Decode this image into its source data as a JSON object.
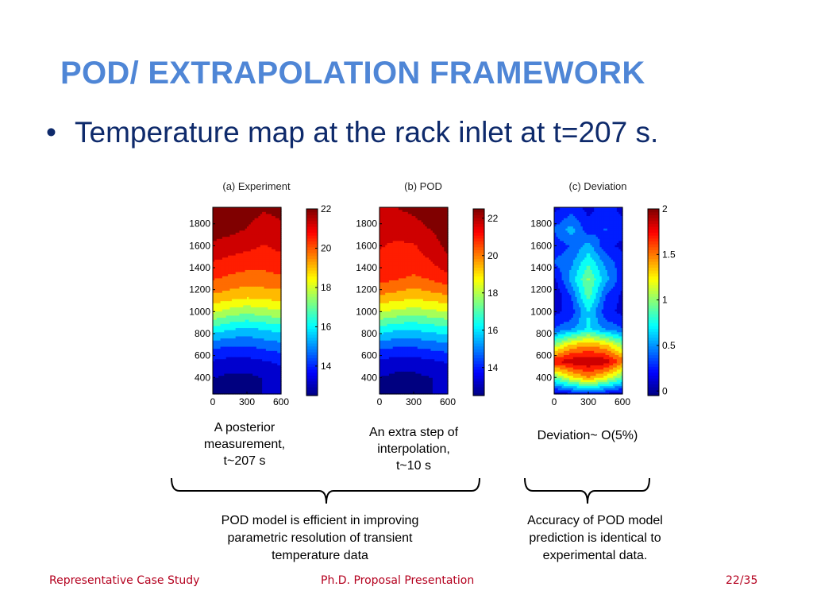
{
  "slide": {
    "title": "POD/ EXTRAPOLATION FRAMEWORK",
    "bullet": "Temperature map at the rack inlet at t=207 s."
  },
  "captions": {
    "experiment": [
      "A posterior",
      "measurement,",
      "t~207 s"
    ],
    "pod": [
      "An extra step of",
      "interpolation,",
      "t~10 s"
    ],
    "deviation": [
      "Deviation~ O(5%)"
    ]
  },
  "notes": {
    "left": [
      "POD model is efficient in improving",
      "parametric resolution of transient",
      "temperature data"
    ],
    "right": [
      "Accuracy of POD model",
      "prediction is identical to",
      "experimental data."
    ]
  },
  "footer": {
    "left": "Representative Case Study",
    "center": "Ph.D. Proposal Presentation",
    "right": "22/35"
  },
  "colors": {
    "title": "#4f86d6",
    "bullet": "#0e2a6b",
    "footer": "#b4001e"
  },
  "chart_data": [
    {
      "type": "heatmap",
      "title": "(a) Experiment",
      "x_ticks": [
        0,
        300,
        600
      ],
      "y_ticks": [
        400,
        600,
        800,
        1000,
        1200,
        1400,
        1600,
        1800
      ],
      "xlim": [
        0,
        600
      ],
      "ylim": [
        250,
        1950
      ],
      "colorbar": {
        "ticks": [
          14,
          16,
          18,
          20,
          22
        ],
        "range": [
          12.5,
          22
        ]
      },
      "x": [
        0,
        150,
        300,
        450,
        600
      ],
      "y": [
        250,
        400,
        550,
        700,
        850,
        1000,
        1150,
        1300,
        1450,
        1600,
        1750,
        1950
      ],
      "values": [
        [
          13.0,
          12.8,
          13.0,
          13.2,
          13.4
        ],
        [
          13.2,
          13.0,
          13.0,
          13.2,
          13.5
        ],
        [
          13.8,
          13.6,
          13.6,
          13.8,
          14.0
        ],
        [
          14.8,
          14.6,
          14.6,
          14.8,
          15.0
        ],
        [
          16.4,
          16.0,
          15.8,
          16.0,
          16.2
        ],
        [
          18.0,
          17.6,
          17.4,
          17.6,
          17.8
        ],
        [
          19.2,
          19.0,
          18.8,
          18.9,
          19.0
        ],
        [
          20.0,
          19.8,
          19.6,
          19.7,
          19.8
        ],
        [
          20.6,
          20.4,
          20.3,
          20.2,
          20.4
        ],
        [
          21.2,
          21.0,
          20.8,
          20.6,
          20.8
        ],
        [
          21.6,
          21.5,
          21.3,
          21.0,
          21.2
        ],
        [
          21.8,
          21.7,
          21.6,
          21.4,
          21.5
        ]
      ]
    },
    {
      "type": "heatmap",
      "title": "(b) POD",
      "x_ticks": [
        0,
        300,
        600
      ],
      "y_ticks": [
        400,
        600,
        800,
        1000,
        1200,
        1400,
        1600,
        1800
      ],
      "xlim": [
        0,
        600
      ],
      "ylim": [
        250,
        1950
      ],
      "colorbar": {
        "ticks": [
          14,
          16,
          18,
          20,
          22
        ],
        "range": [
          12.5,
          22.5
        ]
      },
      "x": [
        0,
        150,
        300,
        450,
        600
      ],
      "y": [
        250,
        400,
        550,
        700,
        850,
        1000,
        1150,
        1300,
        1450,
        1600,
        1750,
        1950
      ],
      "values": [
        [
          13.0,
          12.8,
          13.0,
          13.2,
          13.4
        ],
        [
          13.2,
          13.0,
          13.0,
          13.2,
          13.4
        ],
        [
          13.8,
          13.6,
          13.6,
          13.8,
          14.0
        ],
        [
          15.0,
          14.8,
          14.8,
          15.0,
          15.2
        ],
        [
          16.6,
          16.2,
          16.2,
          16.4,
          16.6
        ],
        [
          18.2,
          18.0,
          17.8,
          18.0,
          18.2
        ],
        [
          19.6,
          19.4,
          19.2,
          19.4,
          19.6
        ],
        [
          20.6,
          20.4,
          20.2,
          20.4,
          20.8
        ],
        [
          21.0,
          20.9,
          20.8,
          21.0,
          21.6
        ],
        [
          21.1,
          21.0,
          21.0,
          21.4,
          22.0
        ],
        [
          21.2,
          21.2,
          21.4,
          21.8,
          22.2
        ],
        [
          21.4,
          21.8,
          22.0,
          22.3,
          22.4
        ]
      ]
    },
    {
      "type": "heatmap",
      "title": "(c) Deviation",
      "x_ticks": [
        0,
        300,
        600
      ],
      "y_ticks": [
        400,
        600,
        800,
        1000,
        1200,
        1400,
        1600,
        1800
      ],
      "xlim": [
        0,
        600
      ],
      "ylim": [
        250,
        1950
      ],
      "colorbar": {
        "ticks": [
          0,
          0.5,
          1,
          1.5,
          2
        ],
        "range": [
          -0.05,
          2.0
        ]
      },
      "x": [
        0,
        150,
        300,
        450,
        600
      ],
      "y": [
        250,
        400,
        550,
        700,
        850,
        1000,
        1150,
        1300,
        1450,
        1600,
        1750,
        1950
      ],
      "values": [
        [
          0.1,
          0.2,
          0.3,
          0.2,
          0.1
        ],
        [
          0.9,
          1.2,
          1.4,
          1.2,
          0.9
        ],
        [
          1.7,
          1.8,
          1.85,
          1.8,
          1.5
        ],
        [
          1.0,
          1.3,
          1.4,
          1.3,
          1.0
        ],
        [
          0.4,
          0.5,
          0.7,
          0.5,
          0.4
        ],
        [
          0.2,
          0.3,
          0.7,
          0.3,
          0.2
        ],
        [
          0.1,
          0.4,
          0.9,
          0.4,
          0.2
        ],
        [
          0.2,
          0.6,
          1.0,
          0.6,
          0.3
        ],
        [
          0.4,
          0.5,
          0.8,
          0.5,
          0.3
        ],
        [
          0.3,
          0.4,
          0.6,
          0.3,
          0.2
        ],
        [
          0.4,
          0.6,
          0.3,
          0.4,
          0.3
        ],
        [
          0.2,
          0.3,
          0.2,
          0.3,
          0.2
        ]
      ]
    }
  ]
}
